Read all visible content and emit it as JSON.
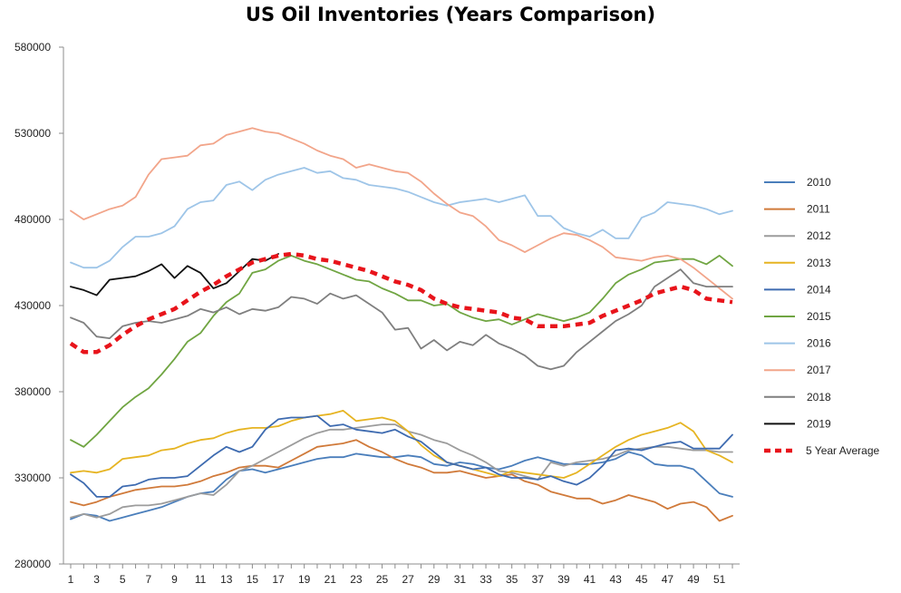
{
  "chart_data": {
    "type": "line",
    "title": "US Oil Inventories (Years Comparison)",
    "xlabel": "",
    "ylabel": "",
    "ylim": [
      280000,
      580000
    ],
    "yticks": [
      280000,
      330000,
      380000,
      430000,
      480000,
      530000,
      580000
    ],
    "xlim": [
      1,
      52
    ],
    "xticks": [
      1,
      3,
      5,
      7,
      9,
      11,
      13,
      15,
      17,
      19,
      21,
      23,
      25,
      27,
      29,
      31,
      33,
      35,
      37,
      39,
      41,
      43,
      45,
      47,
      49,
      51
    ],
    "grid": false,
    "legend_position": "right",
    "x": [
      1,
      2,
      3,
      4,
      5,
      6,
      7,
      8,
      9,
      10,
      11,
      12,
      13,
      14,
      15,
      16,
      17,
      18,
      19,
      20,
      21,
      22,
      23,
      24,
      25,
      26,
      27,
      28,
      29,
      30,
      31,
      32,
      33,
      34,
      35,
      36,
      37,
      38,
      39,
      40,
      41,
      42,
      43,
      44,
      45,
      46,
      47,
      48,
      49,
      50,
      51,
      52
    ],
    "series": [
      {
        "name": "2010",
        "color": "#4a7ebb",
        "width": 1.8,
        "dash": "",
        "values": [
          306000,
          309000,
          308000,
          305000,
          307000,
          309000,
          311000,
          313000,
          316000,
          319000,
          321000,
          322000,
          329000,
          334000,
          335000,
          333000,
          335000,
          337000,
          339000,
          341000,
          342000,
          342000,
          344000,
          343000,
          342000,
          342000,
          343000,
          342000,
          338000,
          337000,
          339000,
          338000,
          336000,
          335000,
          337000,
          340000,
          342000,
          340000,
          338000,
          338000,
          338000,
          339000,
          341000,
          345000,
          343000,
          338000,
          337000,
          337000,
          335000,
          328000,
          321000,
          319000
        ]
      },
      {
        "name": "2011",
        "color": "#d07a3a",
        "width": 1.8,
        "dash": "",
        "values": [
          316000,
          314000,
          316000,
          319000,
          321000,
          323000,
          324000,
          325000,
          325000,
          326000,
          328000,
          331000,
          333000,
          336000,
          337000,
          337000,
          336000,
          340000,
          344000,
          348000,
          349000,
          350000,
          352000,
          348000,
          345000,
          341000,
          338000,
          336000,
          333000,
          333000,
          334000,
          332000,
          330000,
          331000,
          332000,
          328000,
          326000,
          322000,
          320000,
          318000,
          318000,
          315000,
          317000,
          320000,
          318000,
          316000,
          312000,
          315000,
          316000,
          313000,
          305000,
          308000
        ]
      },
      {
        "name": "2012",
        "color": "#9c9c9c",
        "width": 1.8,
        "dash": "",
        "values": [
          307000,
          309000,
          307000,
          309000,
          313000,
          314000,
          314000,
          315000,
          317000,
          319000,
          321000,
          320000,
          326000,
          334000,
          337000,
          341000,
          345000,
          349000,
          353000,
          356000,
          358000,
          358000,
          359000,
          360000,
          361000,
          361000,
          357000,
          355000,
          352000,
          350000,
          346000,
          343000,
          339000,
          334000,
          333000,
          331000,
          329000,
          339000,
          337000,
          339000,
          340000,
          341000,
          343000,
          346000,
          347000,
          348000,
          348000,
          347000,
          346000,
          346000,
          345000,
          345000
        ]
      },
      {
        "name": "2013",
        "color": "#e6b422",
        "width": 1.8,
        "dash": "",
        "values": [
          333000,
          334000,
          333000,
          335000,
          341000,
          342000,
          343000,
          346000,
          347000,
          350000,
          352000,
          353000,
          356000,
          358000,
          359000,
          359000,
          360000,
          363000,
          365000,
          366000,
          367000,
          369000,
          363000,
          364000,
          365000,
          363000,
          357000,
          349000,
          343000,
          339000,
          337000,
          335000,
          333000,
          331000,
          334000,
          333000,
          332000,
          331000,
          330000,
          333000,
          338000,
          343000,
          348000,
          352000,
          355000,
          357000,
          359000,
          362000,
          357000,
          346000,
          343000,
          339000
        ]
      },
      {
        "name": "2014",
        "color": "#3e6bb0",
        "width": 1.8,
        "dash": "",
        "values": [
          332000,
          327000,
          319000,
          319000,
          325000,
          326000,
          329000,
          330000,
          330000,
          331000,
          337000,
          343000,
          348000,
          345000,
          348000,
          358000,
          364000,
          365000,
          365000,
          366000,
          360000,
          361000,
          358000,
          357000,
          356000,
          358000,
          354000,
          351000,
          345000,
          339000,
          337000,
          335000,
          336000,
          332000,
          330000,
          330000,
          329000,
          331000,
          328000,
          326000,
          330000,
          337000,
          346000,
          347000,
          346000,
          348000,
          350000,
          351000,
          347000,
          347000,
          347000,
          355000
        ]
      },
      {
        "name": "2015",
        "color": "#70a542",
        "width": 1.8,
        "dash": "",
        "values": [
          352000,
          348000,
          355000,
          363000,
          371000,
          377000,
          382000,
          390000,
          399000,
          409000,
          414000,
          424000,
          432000,
          437000,
          449000,
          451000,
          456000,
          459000,
          456000,
          454000,
          451000,
          448000,
          445000,
          444000,
          440000,
          437000,
          433000,
          433000,
          430000,
          431000,
          426000,
          423000,
          421000,
          422000,
          419000,
          422000,
          425000,
          423000,
          421000,
          423000,
          426000,
          434000,
          443000,
          448000,
          451000,
          455000,
          456000,
          457000,
          457000,
          454000,
          459000,
          453000
        ]
      },
      {
        "name": "2016",
        "color": "#9ec5e8",
        "width": 1.8,
        "dash": "",
        "values": [
          455000,
          452000,
          452000,
          456000,
          464000,
          470000,
          470000,
          472000,
          476000,
          486000,
          490000,
          491000,
          500000,
          502000,
          497000,
          503000,
          506000,
          508000,
          510000,
          507000,
          508000,
          504000,
          503000,
          500000,
          499000,
          498000,
          496000,
          493000,
          490000,
          488000,
          490000,
          491000,
          492000,
          490000,
          492000,
          494000,
          482000,
          482000,
          475000,
          472000,
          470000,
          474000,
          469000,
          469000,
          481000,
          484000,
          490000,
          489000,
          488000,
          486000,
          483000,
          485000
        ]
      },
      {
        "name": "2017",
        "color": "#f2a58a",
        "width": 1.8,
        "dash": "",
        "values": [
          485000,
          480000,
          483000,
          486000,
          488000,
          493000,
          506000,
          515000,
          516000,
          517000,
          523000,
          524000,
          529000,
          531000,
          533000,
          531000,
          530000,
          527000,
          524000,
          520000,
          517000,
          515000,
          510000,
          512000,
          510000,
          508000,
          507000,
          502000,
          495000,
          489000,
          484000,
          482000,
          476000,
          468000,
          465000,
          461000,
          465000,
          469000,
          472000,
          471000,
          468000,
          464000,
          458000,
          457000,
          456000,
          458000,
          459000,
          457000,
          452000,
          446000,
          440000,
          434000
        ]
      },
      {
        "name": "2018",
        "color": "#7f7f7f",
        "width": 1.8,
        "dash": "",
        "values": [
          423000,
          420000,
          412000,
          411000,
          418000,
          420000,
          421000,
          420000,
          422000,
          424000,
          428000,
          426000,
          429000,
          425000,
          428000,
          427000,
          429000,
          435000,
          434000,
          431000,
          437000,
          434000,
          436000,
          431000,
          426000,
          416000,
          417000,
          405000,
          410000,
          404000,
          409000,
          407000,
          413000,
          408000,
          405000,
          401000,
          395000,
          393000,
          395000,
          403000,
          409000,
          415000,
          421000,
          425000,
          430000,
          441000,
          446000,
          451000,
          443000,
          441000,
          441000,
          441000
        ]
      },
      {
        "name": "2019",
        "color": "#111111",
        "width": 1.8,
        "dash": "",
        "values": [
          441000,
          439000,
          436000,
          445000,
          446000,
          447000,
          450000,
          454000,
          446000,
          453000,
          449000,
          440000,
          443000,
          450000,
          457000,
          456000,
          460000,
          null,
          null,
          null,
          null,
          null,
          null,
          null,
          null,
          null,
          null,
          null,
          null,
          null,
          null,
          null,
          null,
          null,
          null,
          null,
          null,
          null,
          null,
          null,
          null,
          null,
          null,
          null,
          null,
          null,
          null,
          null,
          null,
          null,
          null,
          null
        ]
      },
      {
        "name": "5 Year Average",
        "color": "#e8141b",
        "width": 4.5,
        "dash": "8,6",
        "values": [
          408000,
          403000,
          403000,
          407000,
          413000,
          418000,
          422000,
          425000,
          428000,
          433000,
          438000,
          442000,
          447000,
          451000,
          455000,
          457000,
          459000,
          460000,
          459000,
          457000,
          456000,
          454000,
          452000,
          450000,
          447000,
          444000,
          442000,
          439000,
          434000,
          431000,
          429000,
          428000,
          427000,
          426000,
          423000,
          422000,
          418000,
          418000,
          418000,
          419000,
          420000,
          424000,
          427000,
          430000,
          433000,
          437000,
          439000,
          441000,
          439000,
          434000,
          433000,
          432000
        ]
      }
    ]
  }
}
